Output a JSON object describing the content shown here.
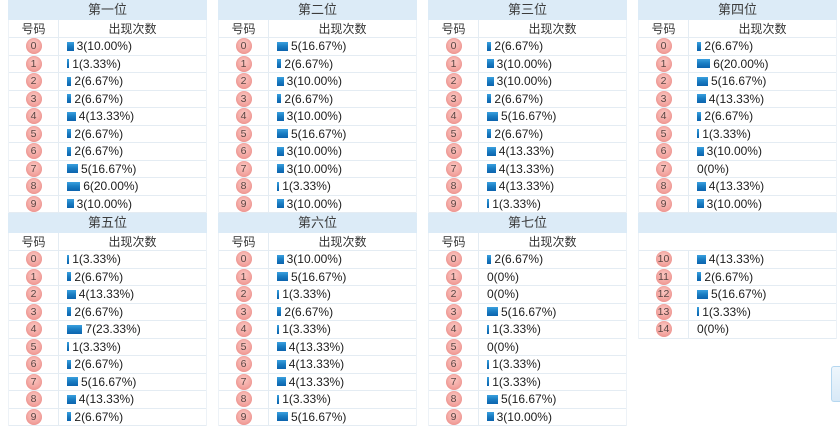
{
  "labels": {
    "number_header": "号码",
    "count_header": "出现次数"
  },
  "colors": {
    "title_bg": "#dcebf7",
    "row_border": "#e4ecf3",
    "body_border": "#edf2f7",
    "bar_top": "#3ba0df",
    "bar_bottom": "#0b63ae",
    "ball": "#f2a29d",
    "widget_border": "#b5d7f0"
  },
  "tables": [
    {
      "title": "第一位",
      "continuation": false,
      "rows": [
        {
          "num": "0",
          "count": 3,
          "label": "3(10.00%)"
        },
        {
          "num": "1",
          "count": 1,
          "label": "1(3.33%)"
        },
        {
          "num": "2",
          "count": 2,
          "label": "2(6.67%)"
        },
        {
          "num": "3",
          "count": 2,
          "label": "2(6.67%)"
        },
        {
          "num": "4",
          "count": 4,
          "label": "4(13.33%)"
        },
        {
          "num": "5",
          "count": 2,
          "label": "2(6.67%)"
        },
        {
          "num": "6",
          "count": 2,
          "label": "2(6.67%)"
        },
        {
          "num": "7",
          "count": 5,
          "label": "5(16.67%)"
        },
        {
          "num": "8",
          "count": 6,
          "label": "6(20.00%)"
        },
        {
          "num": "9",
          "count": 3,
          "label": "3(10.00%)"
        }
      ]
    },
    {
      "title": "第二位",
      "continuation": false,
      "rows": [
        {
          "num": "0",
          "count": 5,
          "label": "5(16.67%)"
        },
        {
          "num": "1",
          "count": 2,
          "label": "2(6.67%)"
        },
        {
          "num": "2",
          "count": 3,
          "label": "3(10.00%)"
        },
        {
          "num": "3",
          "count": 2,
          "label": "2(6.67%)"
        },
        {
          "num": "4",
          "count": 3,
          "label": "3(10.00%)"
        },
        {
          "num": "5",
          "count": 5,
          "label": "5(16.67%)"
        },
        {
          "num": "6",
          "count": 3,
          "label": "3(10.00%)"
        },
        {
          "num": "7",
          "count": 3,
          "label": "3(10.00%)"
        },
        {
          "num": "8",
          "count": 1,
          "label": "1(3.33%)"
        },
        {
          "num": "9",
          "count": 3,
          "label": "3(10.00%)"
        }
      ]
    },
    {
      "title": "第三位",
      "continuation": false,
      "rows": [
        {
          "num": "0",
          "count": 2,
          "label": "2(6.67%)"
        },
        {
          "num": "1",
          "count": 3,
          "label": "3(10.00%)"
        },
        {
          "num": "2",
          "count": 3,
          "label": "3(10.00%)"
        },
        {
          "num": "3",
          "count": 2,
          "label": "2(6.67%)"
        },
        {
          "num": "4",
          "count": 5,
          "label": "5(16.67%)"
        },
        {
          "num": "5",
          "count": 2,
          "label": "2(6.67%)"
        },
        {
          "num": "6",
          "count": 4,
          "label": "4(13.33%)"
        },
        {
          "num": "7",
          "count": 4,
          "label": "4(13.33%)"
        },
        {
          "num": "8",
          "count": 4,
          "label": "4(13.33%)"
        },
        {
          "num": "9",
          "count": 1,
          "label": "1(3.33%)"
        }
      ]
    },
    {
      "title": "第四位",
      "continuation": false,
      "rows": [
        {
          "num": "0",
          "count": 2,
          "label": "2(6.67%)"
        },
        {
          "num": "1",
          "count": 6,
          "label": "6(20.00%)"
        },
        {
          "num": "2",
          "count": 5,
          "label": "5(16.67%)"
        },
        {
          "num": "3",
          "count": 4,
          "label": "4(13.33%)"
        },
        {
          "num": "4",
          "count": 2,
          "label": "2(6.67%)"
        },
        {
          "num": "5",
          "count": 1,
          "label": "1(3.33%)"
        },
        {
          "num": "6",
          "count": 3,
          "label": "3(10.00%)"
        },
        {
          "num": "7",
          "count": 0,
          "label": "0(0%)"
        },
        {
          "num": "8",
          "count": 4,
          "label": "4(13.33%)"
        },
        {
          "num": "9",
          "count": 3,
          "label": "3(10.00%)"
        }
      ]
    },
    {
      "title": "第五位",
      "continuation": false,
      "rows": [
        {
          "num": "0",
          "count": 1,
          "label": "1(3.33%)"
        },
        {
          "num": "1",
          "count": 2,
          "label": "2(6.67%)"
        },
        {
          "num": "2",
          "count": 4,
          "label": "4(13.33%)"
        },
        {
          "num": "3",
          "count": 2,
          "label": "2(6.67%)"
        },
        {
          "num": "4",
          "count": 7,
          "label": "7(23.33%)"
        },
        {
          "num": "5",
          "count": 1,
          "label": "1(3.33%)"
        },
        {
          "num": "6",
          "count": 2,
          "label": "2(6.67%)"
        },
        {
          "num": "7",
          "count": 5,
          "label": "5(16.67%)"
        },
        {
          "num": "8",
          "count": 4,
          "label": "4(13.33%)"
        },
        {
          "num": "9",
          "count": 2,
          "label": "2(6.67%)"
        }
      ]
    },
    {
      "title": "第六位",
      "continuation": false,
      "rows": [
        {
          "num": "0",
          "count": 3,
          "label": "3(10.00%)"
        },
        {
          "num": "1",
          "count": 5,
          "label": "5(16.67%)"
        },
        {
          "num": "2",
          "count": 1,
          "label": "1(3.33%)"
        },
        {
          "num": "3",
          "count": 2,
          "label": "2(6.67%)"
        },
        {
          "num": "4",
          "count": 1,
          "label": "1(3.33%)"
        },
        {
          "num": "5",
          "count": 4,
          "label": "4(13.33%)"
        },
        {
          "num": "6",
          "count": 4,
          "label": "4(13.33%)"
        },
        {
          "num": "7",
          "count": 4,
          "label": "4(13.33%)"
        },
        {
          "num": "8",
          "count": 1,
          "label": "1(3.33%)"
        },
        {
          "num": "9",
          "count": 5,
          "label": "5(16.67%)"
        }
      ]
    },
    {
      "title": "第七位",
      "continuation": false,
      "rows": [
        {
          "num": "0",
          "count": 2,
          "label": "2(6.67%)"
        },
        {
          "num": "1",
          "count": 0,
          "label": "0(0%)"
        },
        {
          "num": "2",
          "count": 0,
          "label": "0(0%)"
        },
        {
          "num": "3",
          "count": 5,
          "label": "5(16.67%)"
        },
        {
          "num": "4",
          "count": 1,
          "label": "1(3.33%)"
        },
        {
          "num": "5",
          "count": 0,
          "label": "0(0%)"
        },
        {
          "num": "6",
          "count": 1,
          "label": "1(3.33%)"
        },
        {
          "num": "7",
          "count": 1,
          "label": "1(3.33%)"
        },
        {
          "num": "8",
          "count": 5,
          "label": "5(16.67%)"
        },
        {
          "num": "9",
          "count": 3,
          "label": "3(10.00%)"
        }
      ]
    },
    {
      "title": "",
      "continuation": true,
      "rows": [
        {
          "num": "10",
          "count": 4,
          "label": "4(13.33%)"
        },
        {
          "num": "11",
          "count": 2,
          "label": "2(6.67%)"
        },
        {
          "num": "12",
          "count": 5,
          "label": "5(16.67%)"
        },
        {
          "num": "13",
          "count": 1,
          "label": "1(3.33%)"
        },
        {
          "num": "14",
          "count": 0,
          "label": "0(0%)"
        }
      ]
    }
  ]
}
